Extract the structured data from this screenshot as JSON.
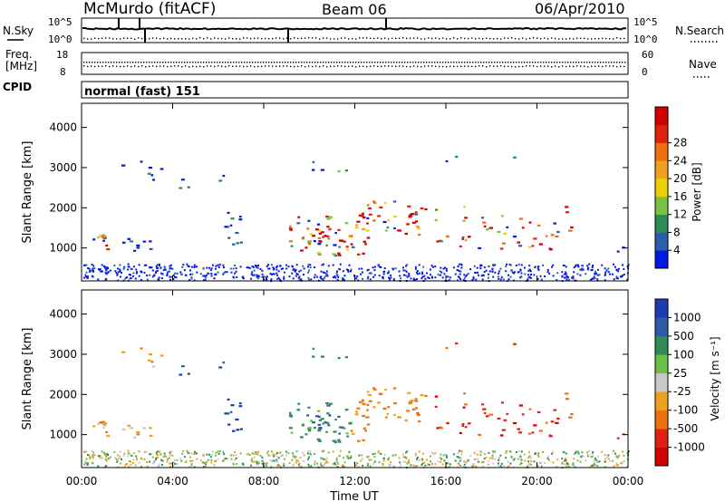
{
  "header": {
    "station": "McMurdo (fitACF)",
    "beam": "Beam 06",
    "date": "06/Apr/2010"
  },
  "strip_panels": {
    "nsky": {
      "label": "N.Sky",
      "ticks": [
        "10^5",
        "10^0"
      ]
    },
    "nsearch": {
      "label": "N.Search",
      "ticks": [
        "10^5",
        "10^0"
      ]
    },
    "freq": {
      "label_line1": "Freq.",
      "label_line2": "[MHz]",
      "ticks": [
        "18",
        "8"
      ]
    },
    "nave": {
      "label": "Nave",
      "ticks": [
        "60",
        "0"
      ]
    },
    "cpid": {
      "label": "CPID",
      "value": "normal (fast) 151"
    }
  },
  "colors": {
    "power_scale": [
      "#0018e8",
      "#2a5ea8",
      "#2f8a5a",
      "#7bc040",
      "#f0d000",
      "#f0a020",
      "#f07010",
      "#e02010",
      "#d00000"
    ],
    "velocity_scale": [
      "#1c3cb0",
      "#2f5aa8",
      "#2e8c5a",
      "#6cc04a",
      "#c8c8c8",
      "#f0a020",
      "#f07010",
      "#e02010",
      "#d00000"
    ]
  },
  "chart_data": [
    {
      "type": "heatmap",
      "name": "Power",
      "xlabel": "",
      "ylabel": "Slant Range [km]",
      "x_ticks": [
        "00:00",
        "04:00",
        "08:00",
        "12:00",
        "16:00",
        "20:00",
        "00:00"
      ],
      "y_ticks": [
        "1000",
        "2000",
        "3000",
        "4000"
      ],
      "xlim_hours": [
        0,
        24
      ],
      "ylim_km": [
        180,
        4600
      ],
      "colorbar_label": "Power [dB]",
      "colorbar_ticks": [
        "4",
        "8",
        "12",
        "16",
        "20",
        "24",
        "28"
      ],
      "color_range": [
        0,
        30
      ]
    },
    {
      "type": "heatmap",
      "name": "Velocity",
      "xlabel": "Time UT",
      "ylabel": "Slant Range [km]",
      "x_ticks": [
        "00:00",
        "04:00",
        "08:00",
        "12:00",
        "16:00",
        "20:00",
        "00:00"
      ],
      "y_ticks": [
        "1000",
        "2000",
        "3000",
        "4000"
      ],
      "xlim_hours": [
        0,
        24
      ],
      "ylim_km": [
        180,
        4600
      ],
      "colorbar_label": "Velocity [m s⁻¹]",
      "colorbar_ticks": [
        "1000",
        "500",
        "100",
        "25",
        "-25",
        "-100",
        "-500",
        "-1000"
      ]
    }
  ]
}
